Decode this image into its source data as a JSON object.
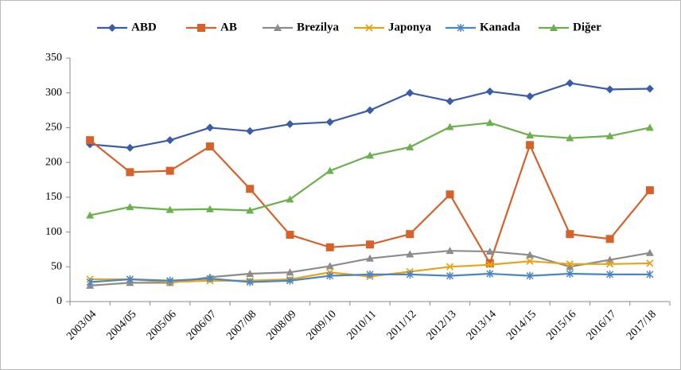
{
  "chart_data": {
    "type": "line",
    "categories": [
      "2003/04",
      "2004/05",
      "2005/06",
      "2006/07",
      "2007/08",
      "2008/09",
      "2009/10",
      "2010/11",
      "2011/12",
      "2012/13",
      "2013/14",
      "2014/15",
      "2015/16",
      "2016/17",
      "2017/18"
    ],
    "series": [
      {
        "name": "ABD",
        "color": "#3b5ca8",
        "marker": "diamond",
        "values": [
          226,
          221,
          232,
          250,
          245,
          255,
          258,
          275,
          300,
          288,
          302,
          295,
          314,
          305,
          306
        ]
      },
      {
        "name": "AB",
        "color": "#d4622a",
        "marker": "square",
        "values": [
          232,
          186,
          188,
          223,
          162,
          96,
          78,
          82,
          97,
          154,
          55,
          225,
          97,
          90,
          160
        ]
      },
      {
        "name": "Brezilya",
        "color": "#8c8c8c",
        "marker": "triangle",
        "values": [
          23,
          27,
          27,
          35,
          40,
          42,
          51,
          62,
          68,
          73,
          72,
          67,
          50,
          60,
          70
        ]
      },
      {
        "name": "Japonya",
        "color": "#e8a317",
        "marker": "x",
        "values": [
          32,
          32,
          28,
          30,
          30,
          32,
          42,
          36,
          43,
          50,
          53,
          58,
          54,
          54,
          55
        ]
      },
      {
        "name": "Kanada",
        "color": "#4a86c5",
        "marker": "asterisk",
        "values": [
          28,
          32,
          30,
          33,
          28,
          30,
          37,
          39,
          39,
          37,
          40,
          37,
          40,
          39,
          39
        ]
      },
      {
        "name": "Diğer",
        "color": "#6ab04c",
        "marker": "triangle",
        "values": [
          124,
          136,
          132,
          133,
          131,
          147,
          188,
          210,
          222,
          251,
          257,
          239,
          235,
          238,
          250
        ]
      }
    ],
    "ylim": [
      0,
      350
    ],
    "yticks": [
      0,
      50,
      100,
      150,
      200,
      250,
      300,
      350
    ],
    "legend": "top"
  }
}
